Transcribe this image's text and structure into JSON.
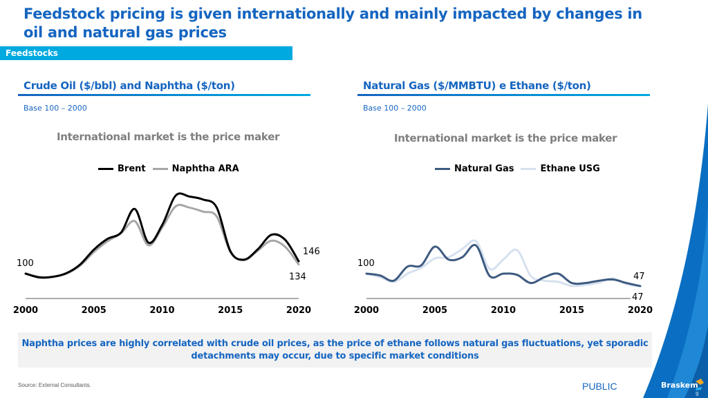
{
  "page": {
    "title": "Feedstock pricing is given internationally and mainly impacted by changes in oil and natural gas prices",
    "section": "Feedstocks",
    "note": "Naphtha prices are highly correlated with crude oil prices, as the price of ethane follows natural gas fluctuations, yet sporadic detachments may occur, due to specific market conditions",
    "source": "Source: External Consultants.",
    "classification": "PUBLIC",
    "brand": "Braskem",
    "page_number": "9",
    "colors": {
      "brand_blue": "#1565c0",
      "section_cyan": "#00a9e0"
    }
  },
  "left_panel": {
    "heading": "Crude Oil ($/bbl) and Naphtha ($/ton)",
    "base": "Base 100 – 2000"
  },
  "right_panel": {
    "heading": "Natural Gas ($/MMBTU) e Ethane ($/ton)",
    "base": "Base 100 – 2000"
  },
  "chart_data": [
    {
      "type": "line",
      "title": "International market is the price maker",
      "xlabel": "",
      "ylabel": "",
      "x": [
        2000,
        2001,
        2002,
        2003,
        2004,
        2005,
        2006,
        2007,
        2008,
        2009,
        2010,
        2011,
        2012,
        2013,
        2014,
        2015,
        2016,
        2017,
        2018,
        2019,
        2020
      ],
      "x_ticks": [
        "2000",
        "2005",
        "2010",
        "2015",
        "2020"
      ],
      "ylim": [
        40,
        420
      ],
      "grid": false,
      "legend": "top-center",
      "series": [
        {
          "name": "Brent",
          "color": "#000000",
          "values": [
            100,
            86,
            88,
            102,
            134,
            189,
            229,
            253,
            340,
            215,
            280,
            390,
            386,
            375,
            345,
            183,
            152,
            190,
            244,
            226,
            146
          ]
        },
        {
          "name": "Naphtha ARA",
          "color": "#a6a6a6",
          "values": [
            100,
            88,
            89,
            100,
            130,
            180,
            220,
            250,
            295,
            205,
            270,
            350,
            345,
            330,
            312,
            180,
            150,
            185,
            222,
            200,
            134
          ]
        }
      ],
      "annotations": [
        {
          "text": "100",
          "at": "2000-start"
        },
        {
          "text": "146",
          "series": "Brent",
          "at": 2020
        },
        {
          "text": "134",
          "series": "Naphtha ARA",
          "at": 2020
        }
      ]
    },
    {
      "type": "line",
      "title": "International market is the price maker",
      "xlabel": "",
      "ylabel": "",
      "x": [
        2000,
        2001,
        2002,
        2003,
        2004,
        2005,
        2006,
        2007,
        2008,
        2009,
        2010,
        2011,
        2012,
        2013,
        2014,
        2015,
        2016,
        2017,
        2018,
        2019,
        2020
      ],
      "x_ticks": [
        "2000",
        "2005",
        "2010",
        "2015",
        "2020"
      ],
      "ylim": [
        10,
        270
      ],
      "grid": false,
      "legend": "top-center",
      "series": [
        {
          "name": "Natural Gas",
          "color": "#3d5a80",
          "values": [
            100,
            92,
            70,
            130,
            135,
            215,
            160,
            170,
            220,
            90,
            100,
            95,
            60,
            85,
            100,
            60,
            60,
            70,
            75,
            60,
            47
          ]
        },
        {
          "name": "Ethane USG",
          "color": "#d6e0ef",
          "values": [
            100,
            85,
            65,
            100,
            125,
            165,
            170,
            205,
            238,
            120,
            160,
            200,
            90,
            70,
            65,
            48,
            52,
            62,
            80,
            55,
            47
          ]
        }
      ],
      "annotations": [
        {
          "text": "100",
          "at": "2000-start"
        },
        {
          "text": "47",
          "series": "Natural Gas",
          "at": 2020
        },
        {
          "text": "47",
          "series": "Ethane USG",
          "at": 2020
        }
      ]
    }
  ]
}
